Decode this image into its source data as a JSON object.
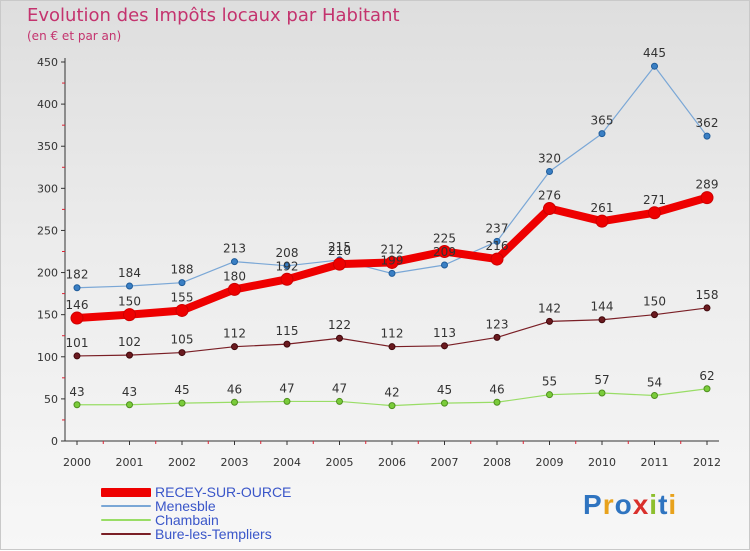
{
  "title": "Evolution des Impôts locaux par Habitant",
  "subtitle": "(en € et par an)",
  "logo": {
    "text": "Proxiti",
    "letter_colors": [
      "#2f74c0",
      "#e8a21c",
      "#2f74c0",
      "#d9302c",
      "#8dbf2e",
      "#2f74c0",
      "#e8a21c"
    ]
  },
  "chart_data": {
    "type": "line",
    "title": "Evolution des Impôts locaux par Habitant",
    "subtitle": "(en € et par an)",
    "x": [
      "2000",
      "2001",
      "2002",
      "2003",
      "2004",
      "2005",
      "2006",
      "2007",
      "2008",
      "2009",
      "2010",
      "2011",
      "2012"
    ],
    "ylim": [
      0,
      450
    ],
    "yticks": [
      0,
      50,
      100,
      150,
      200,
      250,
      300,
      350,
      400,
      450
    ],
    "grid": false,
    "legend_position": "bottom-left",
    "series": [
      {
        "name": "RECEY-SUR-OURCE",
        "color": "#ee0000",
        "values": [
          146,
          150,
          155,
          180,
          192,
          210,
          212,
          225,
          216,
          276,
          261,
          271,
          289
        ]
      },
      {
        "name": "Menesble",
        "color": "#7aa7d6",
        "values": [
          182,
          184,
          188,
          213,
          208,
          215,
          199,
          209,
          237,
          320,
          365,
          445,
          362
        ]
      },
      {
        "name": "Chambain",
        "color": "#99dd66",
        "values": [
          43,
          43,
          45,
          46,
          47,
          47,
          42,
          45,
          46,
          55,
          57,
          54,
          62
        ]
      },
      {
        "name": "Bure-les-Templiers",
        "color": "#7a1f26",
        "values": [
          101,
          102,
          105,
          112,
          115,
          122,
          112,
          113,
          123,
          142,
          144,
          150,
          158
        ]
      }
    ]
  }
}
